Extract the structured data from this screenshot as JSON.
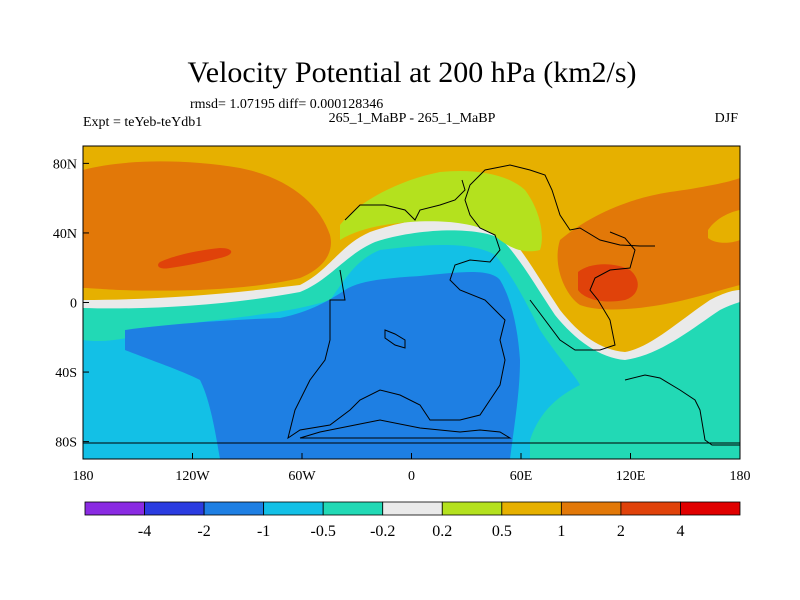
{
  "chart_data": {
    "type": "heatmap",
    "title": "Velocity Potential at 200 hPa (km2/s)",
    "stats_line": "rmsd= 1.07195 diff= 0.000128346",
    "left_label": "Expt = teYeb-teYdb1",
    "center_label": "265_1_MaBP - 265_1_MaBP",
    "right_label": "DJF",
    "x_range": [
      -180,
      180
    ],
    "y_range": [
      -90,
      90
    ],
    "x_ticks": [
      {
        "value": -180,
        "label": "180"
      },
      {
        "value": -120,
        "label": "120W"
      },
      {
        "value": -60,
        "label": "60W"
      },
      {
        "value": 0,
        "label": "0"
      },
      {
        "value": 60,
        "label": "60E"
      },
      {
        "value": 120,
        "label": "120E"
      },
      {
        "value": 180,
        "label": "180"
      }
    ],
    "y_ticks": [
      {
        "value": 80,
        "label": "80N"
      },
      {
        "value": 40,
        "label": "40N"
      },
      {
        "value": 0,
        "label": "0"
      },
      {
        "value": -40,
        "label": "40S"
      },
      {
        "value": -80,
        "label": "80S"
      }
    ],
    "colorbar": {
      "colors": [
        "#8a2be2",
        "#2b3ce0",
        "#1e7fe3",
        "#13c0e6",
        "#22d9b5",
        "#eaeaea",
        "#b4e11e",
        "#e6b000",
        "#e27808",
        "#e0420a",
        "#e00000"
      ],
      "labels": [
        "-4",
        "-2",
        "-1",
        "-0.5",
        "-0.2",
        "0.2",
        "0.5",
        "1",
        "2",
        "4"
      ]
    },
    "level_colors": {
      "green": "#b4e11e",
      "gold": "#e6b000",
      "orange": "#e27808",
      "red": "#e0420a",
      "white": "#eaeaea",
      "cyan": "#13c0e6",
      "teal": "#22d9b5",
      "blue": "#1e7fe3"
    }
  }
}
